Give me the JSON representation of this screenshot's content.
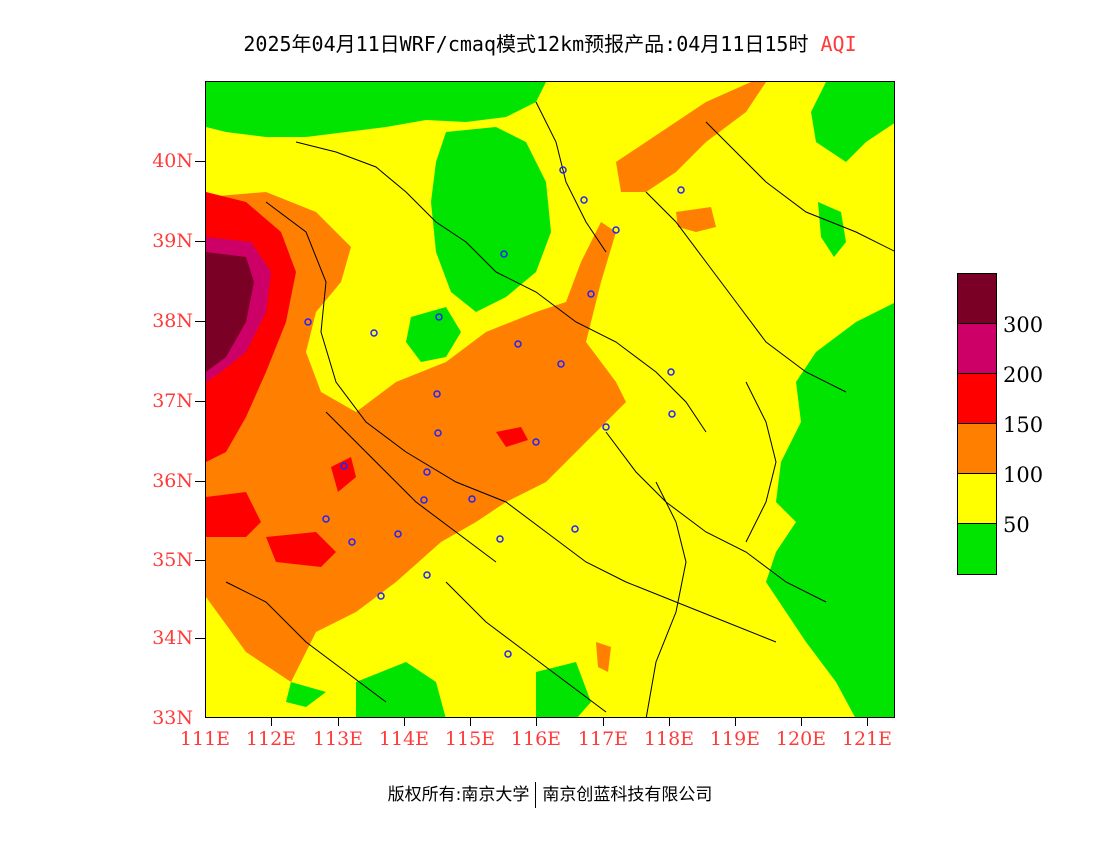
{
  "title": {
    "main": "2025年04月11日WRF/cmaq模式12km预报产品:04月11日15时",
    "variable": "AQI"
  },
  "axes": {
    "y_ticks": [
      "40N",
      "39N",
      "38N",
      "37N",
      "36N",
      "35N",
      "34N",
      "33N"
    ],
    "x_ticks": [
      "111E",
      "112E",
      "113E",
      "114E",
      "115E",
      "116E",
      "117E",
      "118E",
      "119E",
      "120E",
      "121E"
    ],
    "lat_range": [
      33,
      41
    ],
    "lon_range": [
      111,
      121.4
    ]
  },
  "legend": {
    "labels": [
      "300",
      "200",
      "150",
      "100",
      "50"
    ],
    "colors": [
      "#7a0026",
      "#cc0066",
      "#ff0000",
      "#ff7f00",
      "#ffff00",
      "#00e400"
    ]
  },
  "footer": {
    "left": "版权所有:南京大学",
    "right": "南京创蓝科技有限公司"
  }
}
